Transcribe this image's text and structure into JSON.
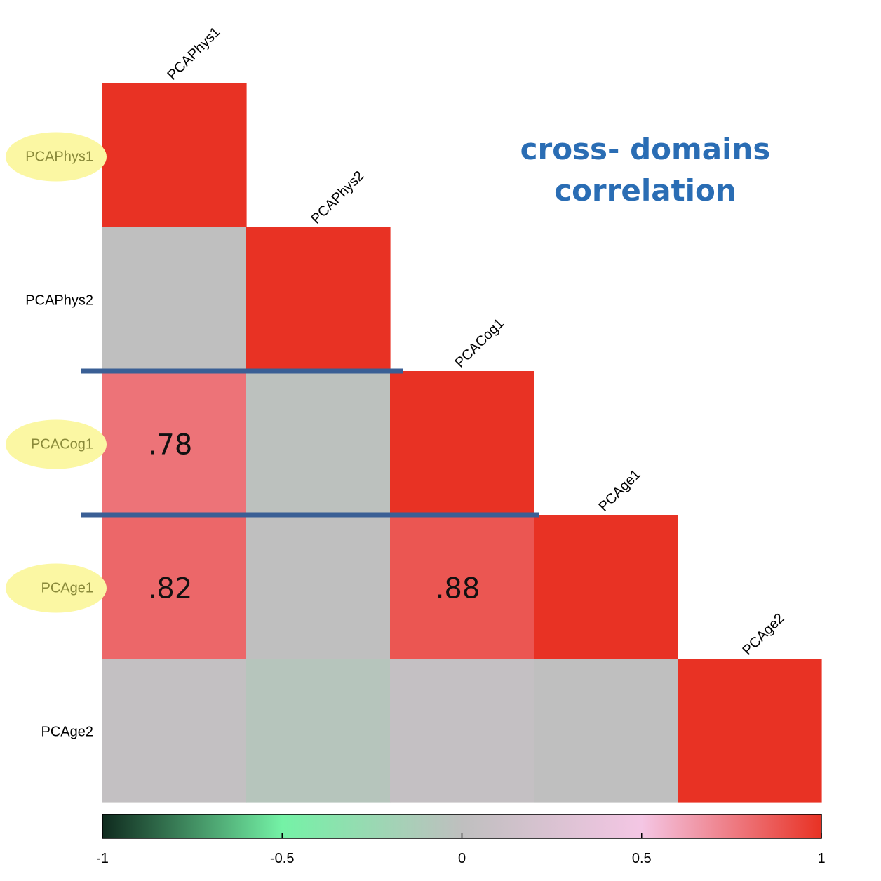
{
  "chart_data": {
    "type": "heatmap",
    "title_lines": [
      "cross- domains",
      "correlation"
    ],
    "title_color": "#2a6db4",
    "variables": [
      "PCAPhys1",
      "PCAPhys2",
      "PCACog1",
      "PCAge1",
      "PCAge2"
    ],
    "highlighted_row_labels": [
      "PCAPhys1",
      "PCACog1",
      "PCAge1"
    ],
    "highlight_color": "#fbf7a3",
    "lower_triangle": [
      [
        1.0
      ],
      [
        0.0,
        1.0
      ],
      [
        0.78,
        -0.02,
        1.0
      ],
      [
        0.82,
        0.0,
        0.88,
        1.0
      ],
      [
        0.04,
        -0.06,
        0.05,
        0.0,
        1.0
      ]
    ],
    "annotations": [
      {
        "row": 2,
        "col": 0,
        "text": ".78"
      },
      {
        "row": 3,
        "col": 0,
        "text": ".82"
      },
      {
        "row": 3,
        "col": 2,
        "text": ".88"
      }
    ],
    "separator_lines_after_rows": [
      1,
      2
    ],
    "separator_color": "#3a5f95",
    "colorbar": {
      "min": -1,
      "max": 1,
      "ticks": [
        -1,
        -0.5,
        0,
        0.5,
        1
      ],
      "tick_labels": [
        "-1",
        "-0.5",
        "0",
        "0.5",
        "1"
      ],
      "stops": [
        {
          "value": -1,
          "color": "#0f2a1e"
        },
        {
          "value": -0.5,
          "color": "#74f2a6"
        },
        {
          "value": 0,
          "color": "#bfbfbf"
        },
        {
          "value": 0.5,
          "color": "#f4c6e4"
        },
        {
          "value": 1,
          "color": "#e83224"
        }
      ]
    }
  }
}
